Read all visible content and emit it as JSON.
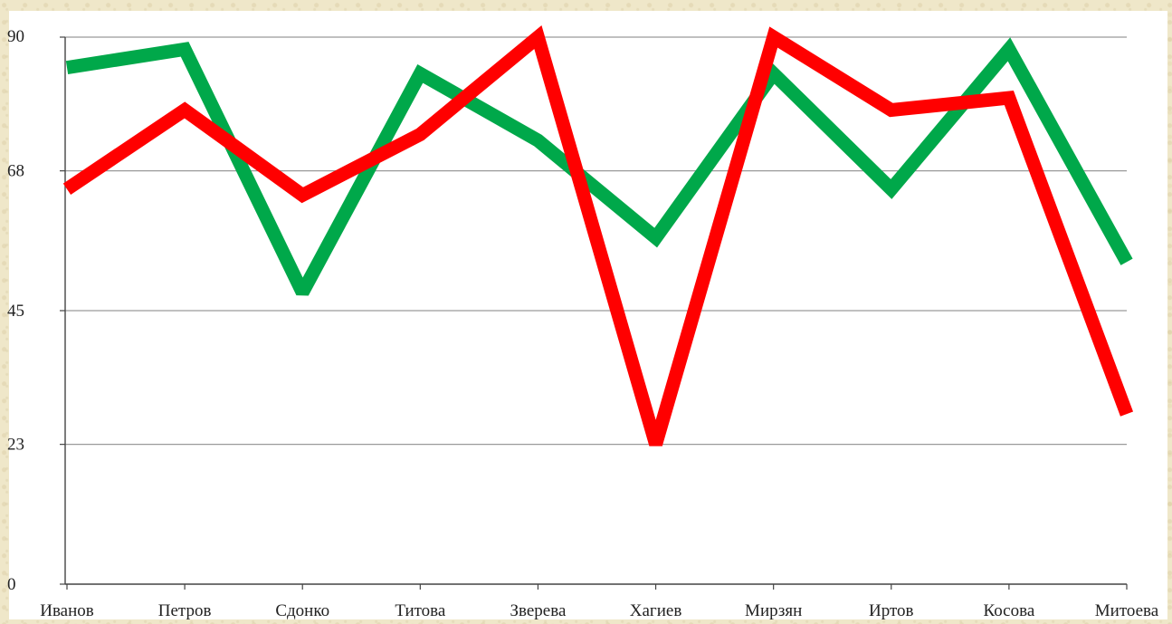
{
  "chart_data": {
    "type": "line",
    "title": "",
    "xlabel": "",
    "ylabel": "",
    "ylim": [
      0,
      90
    ],
    "yticks": [
      "0",
      "23",
      "45",
      "68",
      "90"
    ],
    "ytick_values": [
      0,
      23,
      45,
      68,
      90
    ],
    "categories": [
      "Иванов",
      "Петров",
      "Сдонко",
      "Титова",
      "Зверева",
      "Хагиев",
      "Мирзян",
      "Иртов",
      "Косова",
      "Митоева"
    ],
    "grid": true,
    "series": [
      {
        "color": "#00a84a",
        "values": [
          85,
          88,
          48,
          84,
          73,
          57,
          84,
          65,
          88,
          53
        ]
      },
      {
        "color": "#ff0000",
        "values": [
          65,
          78,
          64,
          74,
          90,
          23,
          90,
          78,
          80,
          28
        ]
      }
    ]
  }
}
